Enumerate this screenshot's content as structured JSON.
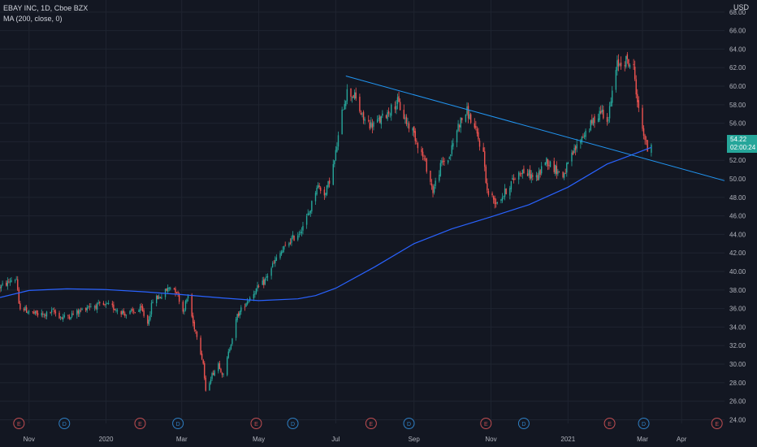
{
  "chart_data": {
    "type": "candlestick",
    "symbol_title": "EBAY INC, 1D, Cboe BZX",
    "indicator_label": "MA (200, close, 0)",
    "currency": "USD",
    "last_price": "54.22",
    "countdown": "02:00:24",
    "y_ticks": [
      "24.00",
      "26.00",
      "28.00",
      "30.00",
      "32.00",
      "34.00",
      "36.00",
      "38.00",
      "40.00",
      "42.00",
      "44.00",
      "46.00",
      "48.00",
      "50.00",
      "52.00",
      "54.00",
      "56.00",
      "58.00",
      "60.00",
      "62.00",
      "64.00",
      "66.00",
      "68.00"
    ],
    "ylim": [
      23.6,
      69.3
    ],
    "x_ticks": [
      {
        "label": "Nov",
        "date": "2019-11-01"
      },
      {
        "label": "2020",
        "date": "2020-01-01"
      },
      {
        "label": "Mar",
        "date": "2020-03-01"
      },
      {
        "label": "May",
        "date": "2020-05-01"
      },
      {
        "label": "Jul",
        "date": "2020-07-01"
      },
      {
        "label": "Sep",
        "date": "2020-09-01"
      },
      {
        "label": "Nov",
        "date": "2020-11-01"
      },
      {
        "label": "2021",
        "date": "2021-01-01"
      },
      {
        "label": "Mar",
        "date": "2021-03-01"
      },
      {
        "label": "Apr",
        "date": "2021-04-01"
      }
    ],
    "x_range": [
      "2019-10-09",
      "2021-05-05"
    ],
    "price_path": [
      [
        "2019-10-09",
        38.3
      ],
      [
        "2019-10-14",
        38.7
      ],
      [
        "2019-10-18",
        39.1
      ],
      [
        "2019-10-22",
        39.2
      ],
      [
        "2019-10-24",
        36.3
      ],
      [
        "2019-10-30",
        35.8
      ],
      [
        "2019-11-06",
        35.4
      ],
      [
        "2019-11-13",
        35.3
      ],
      [
        "2019-11-20",
        35.7
      ],
      [
        "2019-11-27",
        35.0
      ],
      [
        "2019-12-04",
        35.3
      ],
      [
        "2019-12-11",
        35.7
      ],
      [
        "2019-12-18",
        36.3
      ],
      [
        "2019-12-26",
        36.3
      ],
      [
        "2020-01-03",
        36.3
      ],
      [
        "2020-01-10",
        35.9
      ],
      [
        "2020-01-17",
        35.4
      ],
      [
        "2020-01-24",
        35.7
      ],
      [
        "2020-01-29",
        35.9
      ],
      [
        "2020-02-03",
        34.4
      ],
      [
        "2020-02-07",
        36.9
      ],
      [
        "2020-02-14",
        37.4
      ],
      [
        "2020-02-21",
        38.4
      ],
      [
        "2020-02-26",
        37.9
      ],
      [
        "2020-03-02",
        35.7
      ],
      [
        "2020-03-06",
        37.4
      ],
      [
        "2020-03-10",
        34.4
      ],
      [
        "2020-03-13",
        33.2
      ],
      [
        "2020-03-18",
        30.1
      ],
      [
        "2020-03-20",
        26.9
      ],
      [
        "2020-03-24",
        28.6
      ],
      [
        "2020-03-30",
        30.1
      ],
      [
        "2020-04-03",
        28.7
      ],
      [
        "2020-04-08",
        31.8
      ],
      [
        "2020-04-14",
        35.2
      ],
      [
        "2020-04-21",
        36.7
      ],
      [
        "2020-04-28",
        37.9
      ],
      [
        "2020-05-05",
        38.8
      ],
      [
        "2020-05-12",
        40.7
      ],
      [
        "2020-05-19",
        42.1
      ],
      [
        "2020-05-26",
        43.3
      ],
      [
        "2020-06-02",
        44.2
      ],
      [
        "2020-06-10",
        46.3
      ],
      [
        "2020-06-16",
        49.3
      ],
      [
        "2020-06-23",
        48.4
      ],
      [
        "2020-06-30",
        51.9
      ],
      [
        "2020-07-07",
        57.9
      ],
      [
        "2020-07-10",
        59.4
      ],
      [
        "2020-07-16",
        58.9
      ],
      [
        "2020-07-22",
        56.6
      ],
      [
        "2020-07-29",
        55.8
      ],
      [
        "2020-08-05",
        56.3
      ],
      [
        "2020-08-12",
        57.3
      ],
      [
        "2020-08-19",
        58.3
      ],
      [
        "2020-08-26",
        56.1
      ],
      [
        "2020-08-31",
        55.2
      ],
      [
        "2020-09-04",
        53.8
      ],
      [
        "2020-09-10",
        51.7
      ],
      [
        "2020-09-16",
        48.7
      ],
      [
        "2020-09-23",
        51.7
      ],
      [
        "2020-09-29",
        52.3
      ],
      [
        "2020-10-06",
        55.8
      ],
      [
        "2020-10-13",
        57.3
      ],
      [
        "2020-10-19",
        55.4
      ],
      [
        "2020-10-26",
        52.7
      ],
      [
        "2020-10-29",
        48.6
      ],
      [
        "2020-11-05",
        47.5
      ],
      [
        "2020-11-11",
        48.3
      ],
      [
        "2020-11-18",
        49.8
      ],
      [
        "2020-11-25",
        50.9
      ],
      [
        "2020-12-02",
        50.4
      ],
      [
        "2020-12-08",
        50.1
      ],
      [
        "2020-12-14",
        52.1
      ],
      [
        "2020-12-21",
        51.2
      ],
      [
        "2020-12-28",
        50.3
      ],
      [
        "2021-01-05",
        52.7
      ],
      [
        "2021-01-11",
        54.3
      ],
      [
        "2021-01-19",
        55.8
      ],
      [
        "2021-01-27",
        57.4
      ],
      [
        "2021-02-02",
        56.5
      ],
      [
        "2021-02-05",
        59.3
      ],
      [
        "2021-02-09",
        62.3
      ],
      [
        "2021-02-16",
        62.8
      ],
      [
        "2021-02-22",
        61.9
      ],
      [
        "2021-02-26",
        57.3
      ],
      [
        "2021-03-02",
        54.9
      ],
      [
        "2021-03-05",
        53.1
      ],
      [
        "2021-03-08",
        53.9
      ]
    ],
    "moving_average": {
      "name": "MA (200, close, 0)",
      "points": [
        [
          "2019-10-09",
          37.2
        ],
        [
          "2019-11-01",
          37.95
        ],
        [
          "2019-12-01",
          38.13
        ],
        [
          "2020-01-01",
          38.05
        ],
        [
          "2020-02-01",
          37.8
        ],
        [
          "2020-03-01",
          37.5
        ],
        [
          "2020-04-01",
          37.15
        ],
        [
          "2020-05-01",
          36.85
        ],
        [
          "2020-06-01",
          37.05
        ],
        [
          "2020-06-15",
          37.4
        ],
        [
          "2020-07-01",
          38.2
        ],
        [
          "2020-08-01",
          40.5
        ],
        [
          "2020-09-01",
          43.0
        ],
        [
          "2020-10-01",
          44.6
        ],
        [
          "2020-11-01",
          45.9
        ],
        [
          "2020-12-01",
          47.2
        ],
        [
          "2021-01-01",
          49.1
        ],
        [
          "2021-02-01",
          51.6
        ],
        [
          "2021-02-15",
          52.3
        ],
        [
          "2021-03-08",
          53.4
        ]
      ]
    },
    "trend_lines": [
      {
        "from": [
          "2020-07-09",
          61.1
        ],
        "to": [
          "2021-05-05",
          49.8
        ]
      }
    ],
    "event_markers": [
      {
        "type": "E",
        "date": "2019-10-24"
      },
      {
        "type": "D",
        "date": "2019-11-29"
      },
      {
        "type": "E",
        "date": "2020-01-28"
      },
      {
        "type": "D",
        "date": "2020-02-27"
      },
      {
        "type": "E",
        "date": "2020-04-29"
      },
      {
        "type": "D",
        "date": "2020-05-28"
      },
      {
        "type": "E",
        "date": "2020-07-29"
      },
      {
        "type": "D",
        "date": "2020-08-28"
      },
      {
        "type": "E",
        "date": "2020-10-28"
      },
      {
        "type": "D",
        "date": "2020-11-27"
      },
      {
        "type": "E",
        "date": "2021-02-03"
      },
      {
        "type": "D",
        "date": "2021-03-02"
      },
      {
        "type": "E",
        "date": "2021-04-29"
      }
    ],
    "grid": true,
    "colors": {
      "background": "#131722",
      "grid": "#1f2430",
      "up": "#26a69a",
      "down": "#ef5350",
      "ma": "#2962ff",
      "trend": "#2196f3",
      "earnings": "#c14e52",
      "dividend": "#2f7fc3",
      "text": "#b2b5be"
    }
  }
}
